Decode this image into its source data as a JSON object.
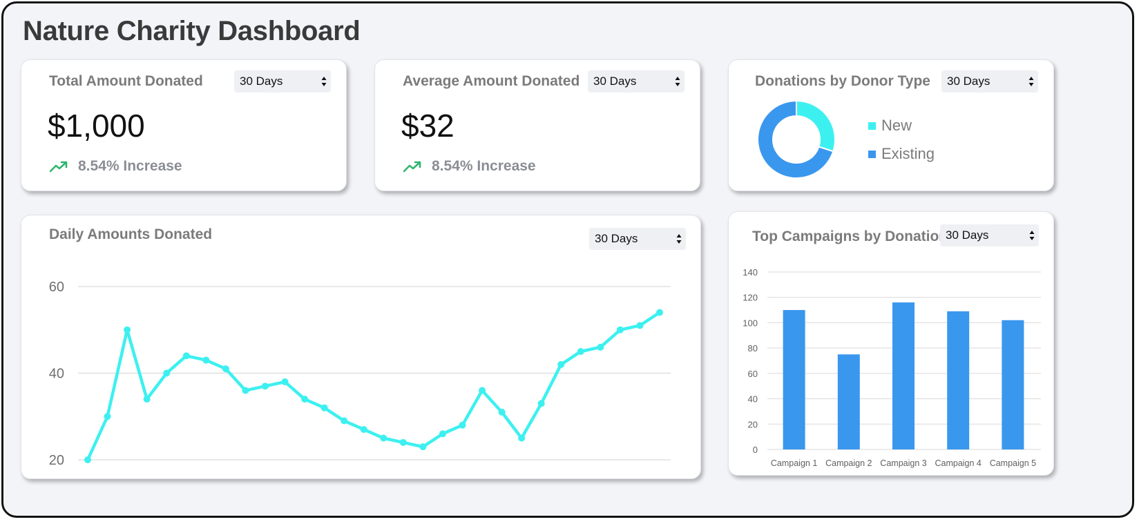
{
  "page": {
    "title": "Nature Charity Dashboard"
  },
  "colors": {
    "cyan": "#3df0f0",
    "blue": "#3a97ee",
    "trend_green": "#2fb56e",
    "title_gray": "#7b7b7b"
  },
  "cards": {
    "total": {
      "title": "Total Amount Donated",
      "period": "30 Days",
      "value": "$1,000",
      "trend": "8.54% Increase",
      "trend_icon": "trending-up-icon"
    },
    "average": {
      "title": "Average Amount Donated",
      "period": "30 Days",
      "value": "$32",
      "trend": "8.54% Increase",
      "trend_icon": "trending-up-icon"
    },
    "donor_type": {
      "title": "Donations by Donor Type",
      "period": "30 Days"
    },
    "daily": {
      "title": "Daily Amounts Donated",
      "period": "30 Days"
    },
    "campaigns": {
      "title": "Top Campaigns by Donations",
      "period": "30 Days"
    }
  },
  "chart_data": [
    {
      "id": "donor_type",
      "type": "pie",
      "variant": "donut",
      "labels": [
        "New",
        "Existing"
      ],
      "values": [
        30,
        70
      ],
      "colors": [
        "#3df0f0",
        "#3a97ee"
      ],
      "legend": "right"
    },
    {
      "id": "daily",
      "type": "line",
      "x": [
        1,
        2,
        3,
        4,
        5,
        6,
        7,
        8,
        9,
        10,
        11,
        12,
        13,
        14,
        15,
        16,
        17,
        18,
        19,
        20,
        21,
        22,
        23,
        24,
        25,
        26,
        27,
        28,
        29,
        30
      ],
      "series": [
        {
          "values": [
            20,
            30,
            50,
            34,
            40,
            44,
            43,
            41,
            36,
            37,
            38,
            34,
            32,
            29,
            27,
            25,
            24,
            23,
            26,
            28,
            36,
            31,
            25,
            33,
            42,
            45,
            46,
            50,
            51,
            54
          ],
          "color": "#3df0f0"
        }
      ],
      "ylim": [
        20,
        60
      ],
      "yticks": [
        20,
        40,
        60
      ],
      "grid": true,
      "markers": true
    },
    {
      "id": "campaigns",
      "type": "bar",
      "categories": [
        "Campaign 1",
        "Campaign 2",
        "Campaign 3",
        "Campaign 4",
        "Campaign 5"
      ],
      "values": [
        110,
        75,
        116,
        109,
        102
      ],
      "color": "#3a97ee",
      "ylim": [
        0,
        140
      ],
      "yticks": [
        0,
        20,
        40,
        60,
        80,
        100,
        120,
        140
      ],
      "grid": true
    }
  ]
}
